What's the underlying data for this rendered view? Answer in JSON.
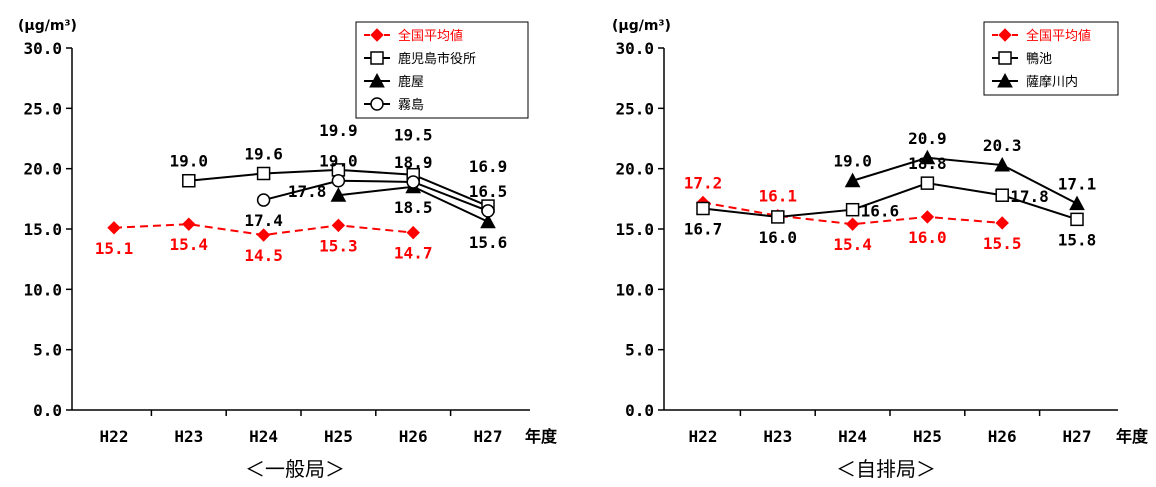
{
  "colors": {
    "national": "#ff0000",
    "station": "#000000"
  },
  "chart_data": [
    {
      "type": "line",
      "title": "＜一般局＞",
      "unit": "(μg/m³)",
      "xlabel": "年度",
      "ylabel": "",
      "ylim": [
        0,
        30
      ],
      "yticks": [
        "0.0",
        "5.0",
        "10.0",
        "15.0",
        "20.0",
        "25.0",
        "30.0"
      ],
      "categories": [
        "H22",
        "H23",
        "H24",
        "H25",
        "H26",
        "H27"
      ],
      "grid": false,
      "legend": "top-right",
      "series": [
        {
          "name": "全国平均値",
          "marker": "diamond",
          "dashed": true,
          "color": "#ff0000",
          "values": [
            15.1,
            15.4,
            14.5,
            15.3,
            14.7,
            null
          ],
          "labels": [
            "15.1",
            "15.4",
            "14.5",
            "15.3",
            "14.7",
            null
          ],
          "labelPos": [
            "below",
            "below",
            "below",
            "below",
            "below",
            null
          ]
        },
        {
          "name": "鹿児島市役所",
          "marker": "square",
          "dashed": false,
          "color": "#000000",
          "values": [
            null,
            19.0,
            19.6,
            19.9,
            19.5,
            16.9
          ],
          "labels": [
            null,
            "19.0",
            "19.6",
            "19.9",
            "19.5",
            "16.9"
          ],
          "labelPos": [
            null,
            "above",
            "above",
            "above2",
            "above2",
            "above2"
          ]
        },
        {
          "name": "鹿屋",
          "marker": "triangle",
          "dashed": false,
          "color": "#000000",
          "values": [
            null,
            null,
            null,
            17.8,
            18.5,
            15.6
          ],
          "labels": [
            null,
            null,
            null,
            "17.8",
            "18.5",
            "15.6"
          ],
          "labelPos": [
            null,
            null,
            null,
            "left",
            "below",
            "below"
          ]
        },
        {
          "name": "霧島",
          "marker": "circle",
          "dashed": false,
          "color": "#000000",
          "values": [
            null,
            null,
            17.4,
            19.0,
            18.9,
            16.5
          ],
          "labels": [
            null,
            null,
            "17.4",
            "19.0",
            "18.9",
            "16.5"
          ],
          "labelPos": [
            null,
            null,
            "below",
            "above1",
            "above1",
            "above1"
          ]
        }
      ]
    },
    {
      "type": "line",
      "title": "＜自排局＞",
      "unit": "(μg/m³)",
      "xlabel": "年度",
      "ylabel": "",
      "ylim": [
        0,
        30
      ],
      "yticks": [
        "0.0",
        "5.0",
        "10.0",
        "15.0",
        "20.0",
        "25.0",
        "30.0"
      ],
      "categories": [
        "H22",
        "H23",
        "H24",
        "H25",
        "H26",
        "H27"
      ],
      "grid": false,
      "legend": "top-right",
      "series": [
        {
          "name": "全国平均値",
          "marker": "diamond",
          "dashed": true,
          "color": "#ff0000",
          "values": [
            17.2,
            16.1,
            15.4,
            16.0,
            15.5,
            null
          ],
          "labels": [
            "17.2",
            "16.1",
            "15.4",
            "16.0",
            "15.5",
            null
          ],
          "labelPos": [
            "above",
            "above",
            "below",
            "below",
            "below",
            null
          ]
        },
        {
          "name": "鴨池",
          "marker": "square",
          "dashed": false,
          "color": "#000000",
          "values": [
            16.7,
            16.0,
            16.6,
            18.8,
            17.8,
            15.8
          ],
          "labels": [
            "16.7",
            "16.0",
            "16.6",
            "18.8",
            "17.8",
            "15.8"
          ],
          "labelPos": [
            "below",
            "below",
            "right",
            "above",
            "right",
            "below"
          ]
        },
        {
          "name": "薩摩川内",
          "marker": "triangle",
          "dashed": false,
          "color": "#000000",
          "values": [
            null,
            null,
            19.0,
            20.9,
            20.3,
            17.1
          ],
          "labels": [
            null,
            null,
            "19.0",
            "20.9",
            "20.3",
            "17.1"
          ],
          "labelPos": [
            null,
            null,
            "above",
            "above",
            "above",
            "above"
          ]
        }
      ]
    }
  ]
}
